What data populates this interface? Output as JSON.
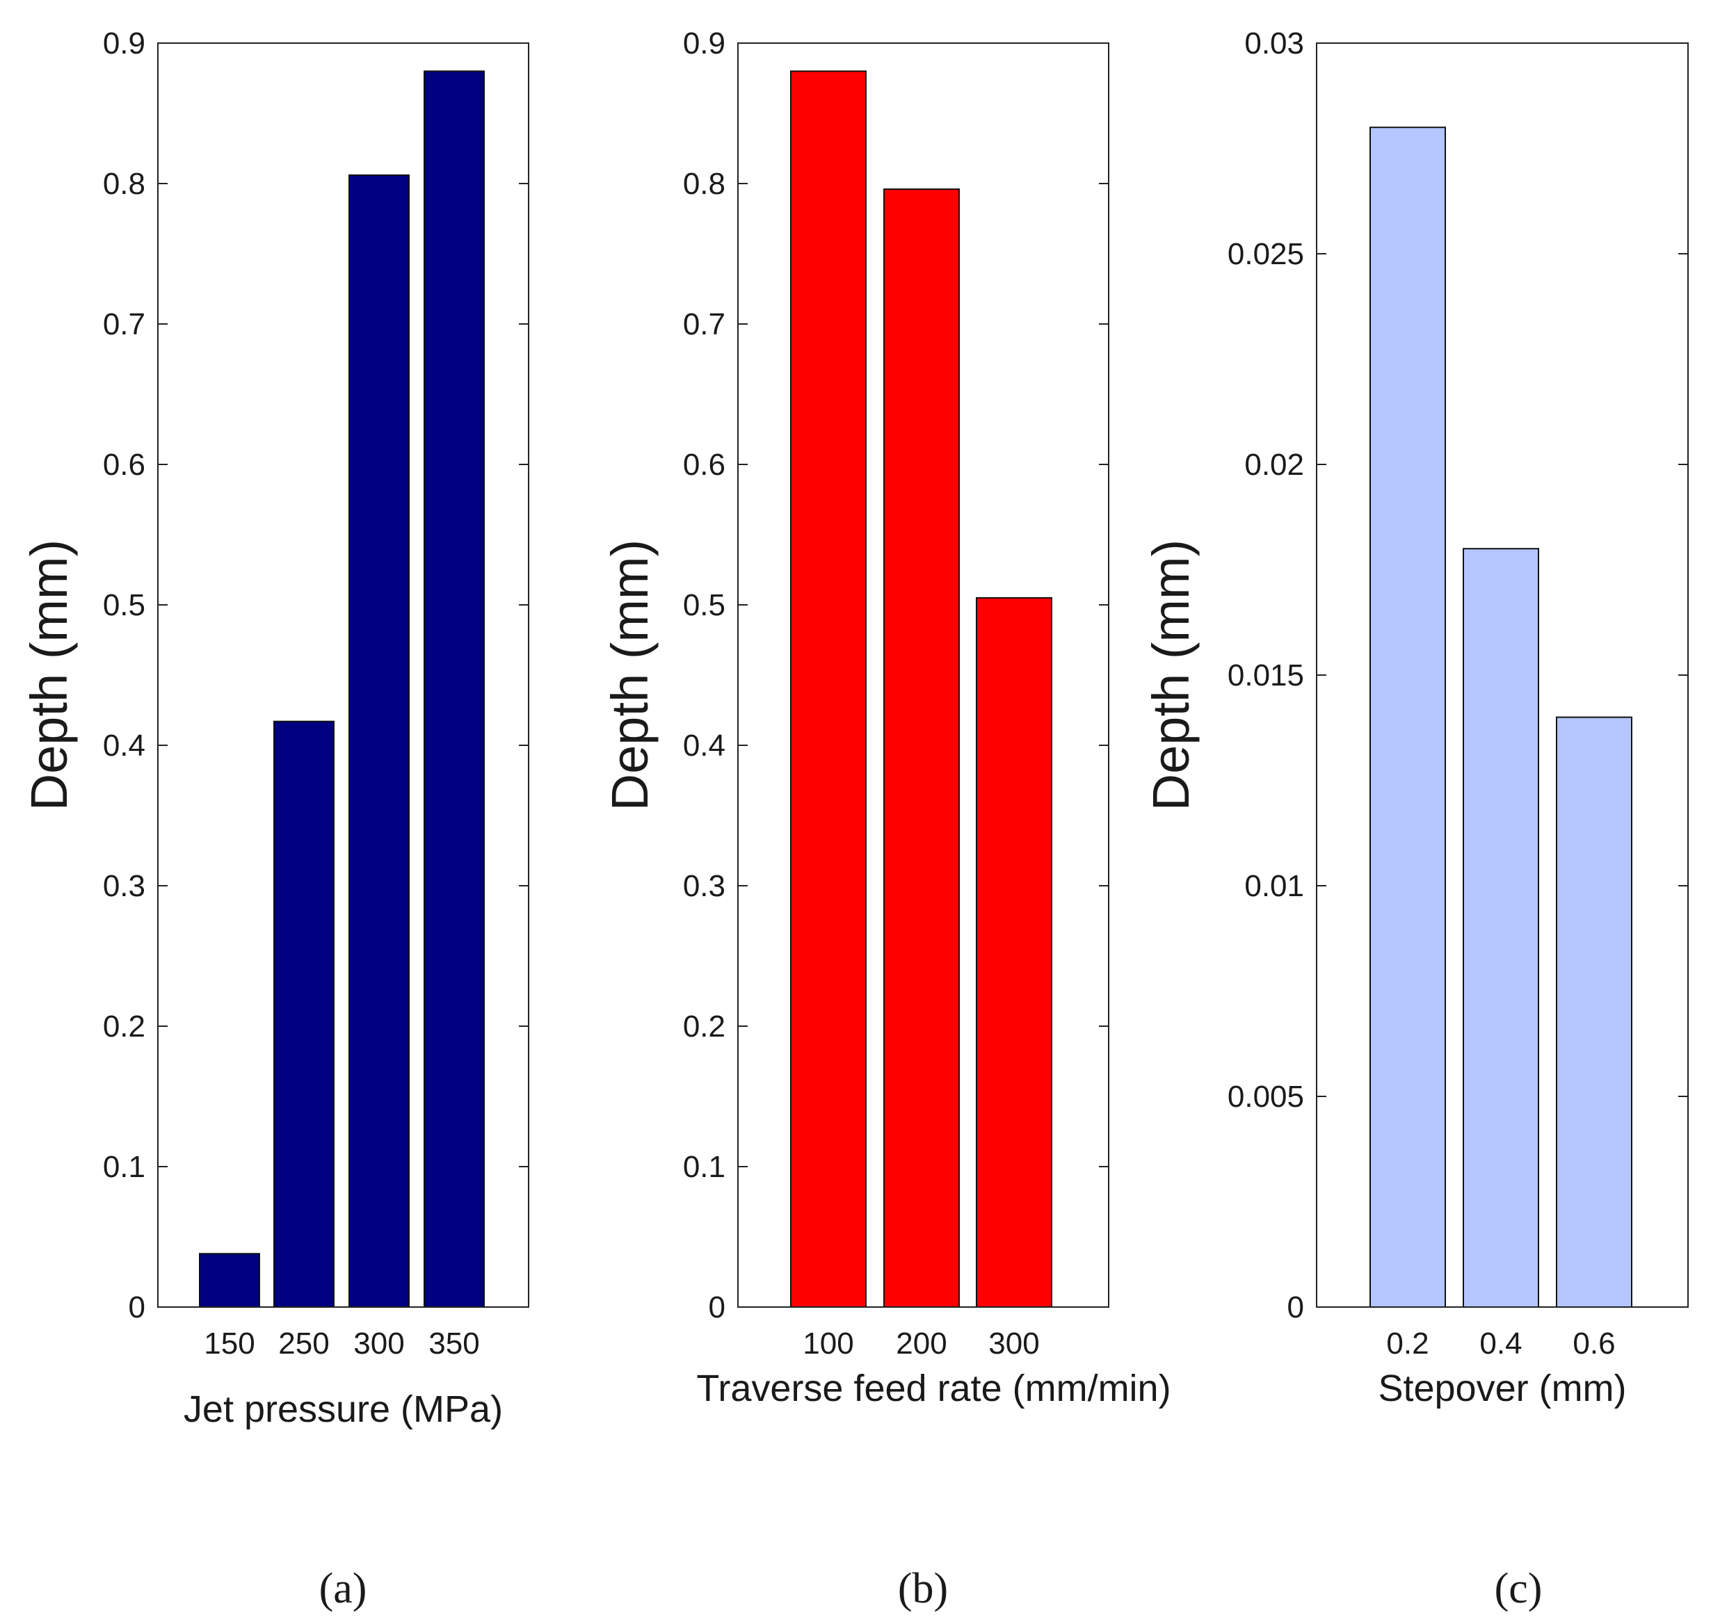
{
  "chart_data": [
    {
      "type": "bar",
      "panel_label": "(a)",
      "categories": [
        "150",
        "250",
        "300",
        "350"
      ],
      "values": [
        0.038,
        0.417,
        0.806,
        0.88
      ],
      "xlabel": "Jet pressure (MPa)",
      "ylabel": "Depth (mm)",
      "ylim": [
        0,
        0.9
      ],
      "yticks": [
        "0",
        "0.1",
        "0.2",
        "0.3",
        "0.4",
        "0.5",
        "0.6",
        "0.7",
        "0.8",
        "0.9"
      ],
      "bar_color": "#000080",
      "grid": false,
      "legend": "none"
    },
    {
      "type": "bar",
      "panel_label": "(b)",
      "categories": [
        "100",
        "200",
        "300"
      ],
      "values": [
        0.88,
        0.796,
        0.505
      ],
      "xlabel": "Traverse feed rate (mm/min)",
      "ylabel": "Depth (mm)",
      "ylim": [
        0,
        0.9
      ],
      "yticks": [
        "0",
        "0.1",
        "0.2",
        "0.3",
        "0.4",
        "0.5",
        "0.6",
        "0.7",
        "0.8",
        "0.9"
      ],
      "bar_color": "#ff0000",
      "grid": false,
      "legend": "none"
    },
    {
      "type": "bar",
      "panel_label": "(c)",
      "categories": [
        "0.2",
        "0.4",
        "0.6"
      ],
      "values": [
        0.028,
        0.018,
        0.014
      ],
      "xlabel": "Stepover (mm)",
      "ylabel": "Depth (mm)",
      "ylim": [
        0,
        0.03
      ],
      "yticks": [
        "0",
        "0.005",
        "0.01",
        "0.015",
        "0.02",
        "0.025",
        "0.03"
      ],
      "bar_color": "#b3c6ff",
      "grid": false,
      "legend": "none"
    }
  ]
}
